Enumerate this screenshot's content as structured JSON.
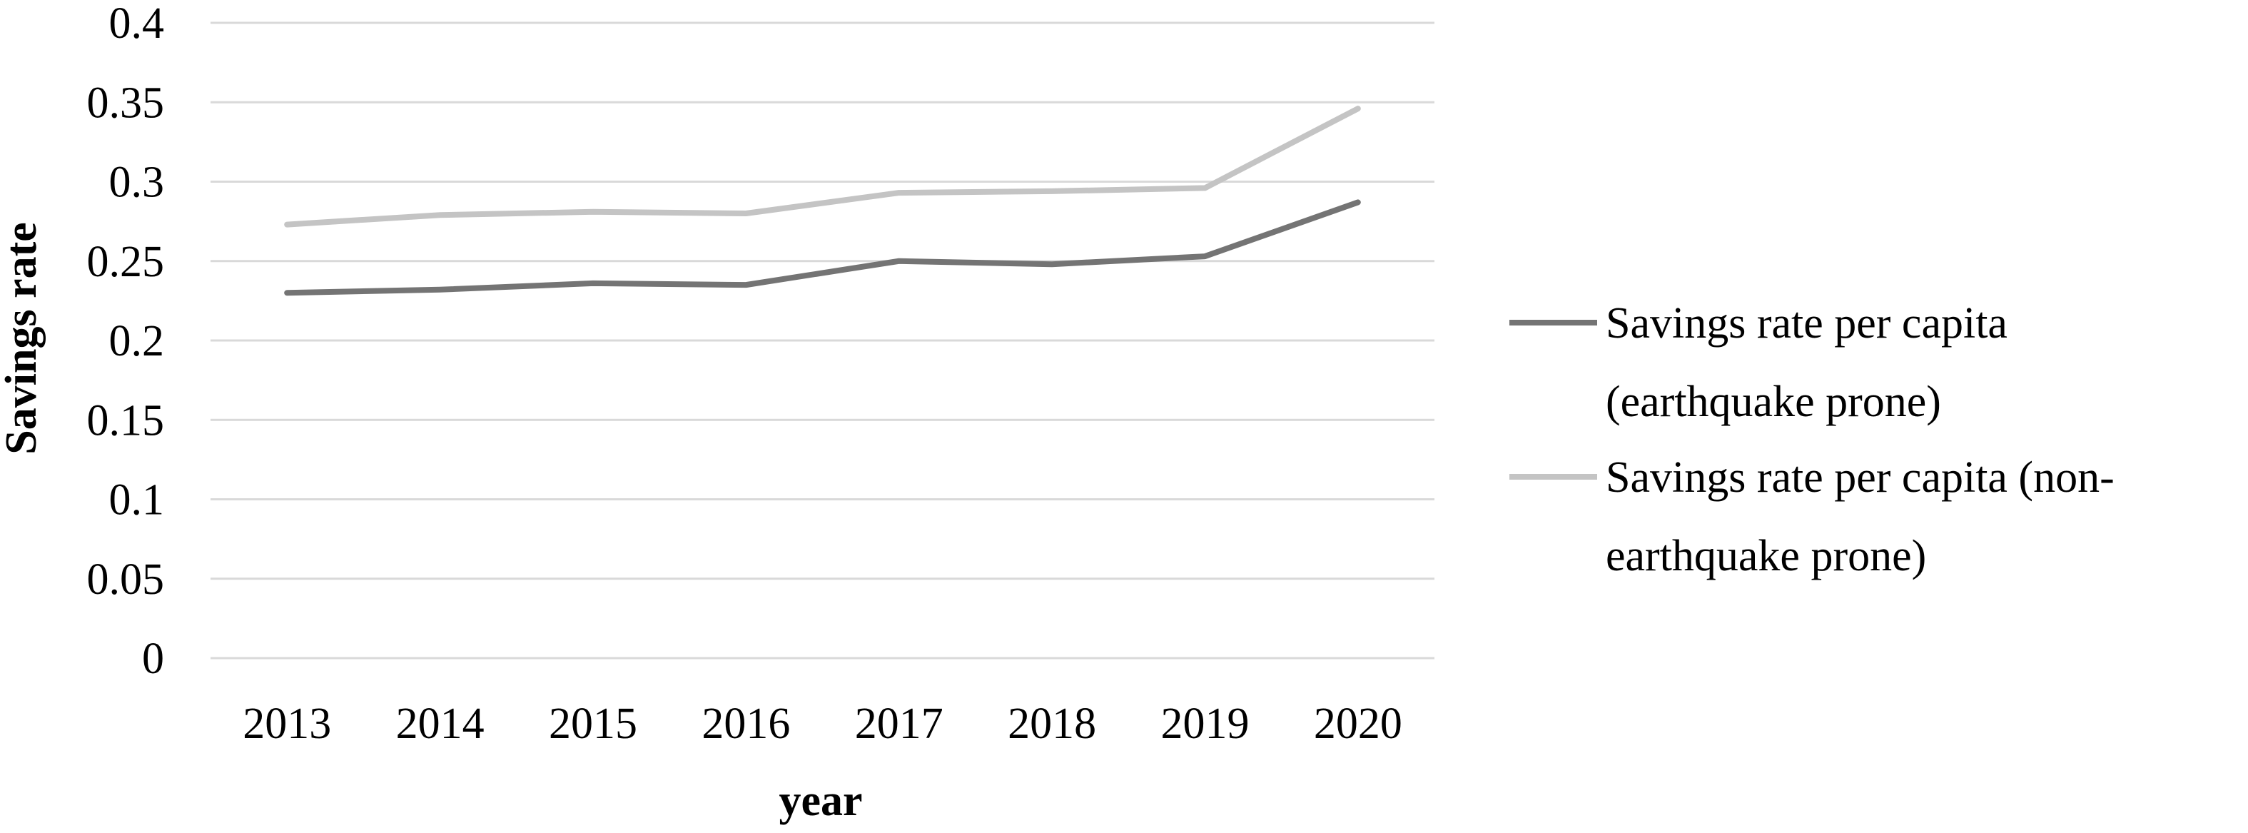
{
  "chart_data": {
    "type": "line",
    "title": "",
    "xlabel": "year",
    "ylabel": "Savings rate",
    "categories": [
      "2013",
      "2014",
      "2015",
      "2016",
      "2017",
      "2018",
      "2019",
      "2020"
    ],
    "ylim": [
      0,
      0.4
    ],
    "yticks": [
      "0",
      "0.05",
      "0.1",
      "0.15",
      "0.2",
      "0.25",
      "0.3",
      "0.35",
      "0.4"
    ],
    "grid": true,
    "legend_position": "right",
    "series": [
      {
        "name_lines": [
          "Savings rate per capita",
          "(earthquake prone)"
        ],
        "color": "#747474",
        "values": [
          0.23,
          0.232,
          0.236,
          0.235,
          0.25,
          0.248,
          0.253,
          0.287
        ]
      },
      {
        "name_lines": [
          "Savings rate per capita (non-",
          "earthquake prone)"
        ],
        "color": "#c4c4c4",
        "values": [
          0.273,
          0.279,
          0.281,
          0.28,
          0.293,
          0.294,
          0.296,
          0.346
        ]
      }
    ]
  }
}
